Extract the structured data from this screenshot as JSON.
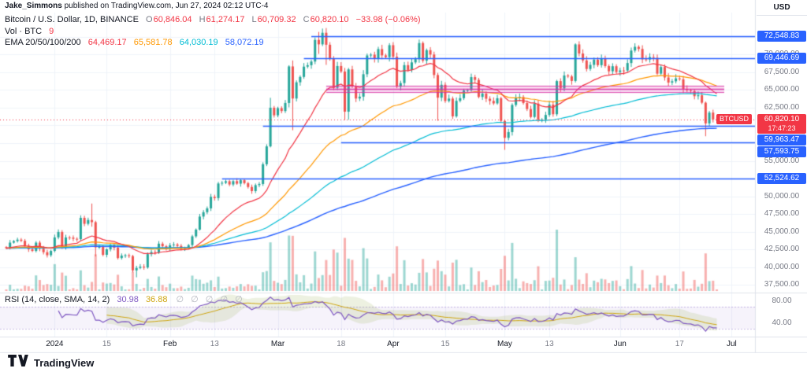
{
  "attribution": {
    "author": "Jake_Simmons",
    "rest": " published on TradingView.com, Jun 27, 2024 02:12 UTC-4"
  },
  "symbol_row": {
    "title": "Bitcoin / U.S. Dollar, 1D, BINANCE",
    "pairs": [
      {
        "k": "O",
        "v": "60,846.04"
      },
      {
        "k": "H",
        "v": "61,274.17"
      },
      {
        "k": "L",
        "v": "60,709.32"
      },
      {
        "k": "C",
        "v": "60,820.10"
      }
    ],
    "change": "−33.98 (−0.06%)"
  },
  "vol_row": {
    "label": "Vol · BTC",
    "value": "9"
  },
  "ema_row": {
    "label": "EMA 20/50/100/200",
    "values": [
      "64,469.17",
      "65,581.78",
      "64,030.19",
      "58,072.19"
    ]
  },
  "rsi_row": {
    "label": "RSI (14, close, SMA, 14, 2)",
    "rsi_value": "30.98",
    "ma_value": "36.88",
    "empties": "∅ ∅ ∅ ∅ ∅"
  },
  "price_scale": {
    "currency": "USD",
    "current": {
      "symbol_label": "BTCUSD",
      "price_label": "60,820.10",
      "price": 60820.1,
      "countdown": "17:47:23"
    }
  },
  "footer": {
    "brand": "TradingView"
  },
  "colors": {
    "up": "#26a69a",
    "down": "#ef5350",
    "up_vol": "rgba(38,166,154,0.45)",
    "down_vol": "rgba(239,83,80,0.45)",
    "accent_blue": "#2962ff",
    "current_red": "#f23645",
    "ema20": "#f23645",
    "ema50": "#ff9800",
    "ema100": "#00bcd4",
    "ema200": "#2962ff",
    "rsi": "#7e57c2",
    "rsi_ma": "#cfa50f",
    "rsi_bb_fill": "rgba(141,171,66,0.16)",
    "rsi_zone_fill": "rgba(126,87,194,0.07)",
    "rsi_zone_line": "rgba(126,87,194,0.4)",
    "zone_fill": "rgba(231,70,183,0.20)",
    "zone_border": "rgba(214,43,161,0.85)",
    "grid": "#f0f3fa",
    "separator": "#e0e3eb",
    "axis_text": "#787b86",
    "text": "#131722"
  },
  "chart_data": {
    "type": "candlestick",
    "symbol": "BTCUSD",
    "exchange": "BINANCE",
    "interval": "1D",
    "start_date": "2023-12-19",
    "indicators": [
      "Volume",
      "EMA 20",
      "EMA 50",
      "EMA 100",
      "EMA 200",
      "RSI (14, close, SMA, 14, 2)"
    ],
    "closes": [
      42660,
      43450,
      43670,
      43870,
      43710,
      43010,
      42520,
      42280,
      43450,
      42600,
      42100,
      41670,
      42280,
      44190,
      44960,
      42850,
      44180,
      44160,
      43990,
      43940,
      46950,
      46110,
      46650,
      46340,
      42780,
      42840,
      41730,
      42510,
      43140,
      42740,
      41270,
      41620,
      41670,
      41550,
      39530,
      39880,
      40060,
      39940,
      41820,
      42120,
      42030,
      43300,
      42940,
      42580,
      43080,
      43190,
      42990,
      42580,
      42710,
      43100,
      44340,
      45290,
      47130,
      47750,
      48290,
      49920,
      49740,
      51800,
      51900,
      52120,
      51660,
      52130,
      51780,
      52270,
      51850,
      51310,
      50730,
      51570,
      51730,
      54520,
      57040,
      62500,
      61430,
      62440,
      62030,
      63170,
      68330,
      63800,
      66090,
      66850,
      68300,
      68500,
      69020,
      72080,
      71450,
      73080,
      71390,
      69400,
      65310,
      68390,
      67610,
      61940,
      67910,
      65490,
      63800,
      64060,
      67230,
      69880,
      69990,
      69470,
      70780,
      69890,
      69640,
      71330,
      69700,
      65460,
      65980,
      68510,
      67840,
      68900,
      69360,
      71630,
      69140,
      70630,
      70010,
      67120,
      63920,
      65740,
      63450,
      63790,
      61280,
      63470,
      63850,
      64940,
      64980,
      66820,
      66430,
      64020,
      64500,
      63770,
      63460,
      63110,
      63840,
      60640,
      58250,
      59060,
      62890,
      63890,
      64010,
      63160,
      62310,
      61190,
      63090,
      60790,
      60820,
      61480,
      62940,
      61580,
      66260,
      65230,
      67050,
      66920,
      66280,
      71440,
      70150,
      69180,
      67970,
      68550,
      69280,
      68510,
      69420,
      68380,
      67640,
      68360,
      67540,
      67760,
      67750,
      68810,
      70570,
      71100,
      70800,
      69330,
      69310,
      69650,
      69540,
      67310,
      68250,
      66770,
      66050,
      66230,
      66640,
      66510,
      65140,
      64970,
      64860,
      64130,
      64260,
      63210,
      60280,
      61810,
      60850,
      60820
    ],
    "overrides": {
      "23": [
        46650,
        48970,
        45700,
        46340
      ],
      "24": [
        46340,
        46540,
        41500,
        42780
      ],
      "35": [
        39530,
        40180,
        38555,
        39880
      ],
      "71": [
        57040,
        63900,
        56900,
        62500
      ],
      "76": [
        63170,
        68500,
        62550,
        68330
      ],
      "77": [
        68330,
        69170,
        59320,
        63800
      ],
      "84": [
        72080,
        73200,
        70100,
        71450
      ],
      "85": [
        71450,
        73680,
        71200,
        73080
      ],
      "86": [
        73080,
        73750,
        68550,
        71390
      ],
      "91": [
        67610,
        68120,
        60770,
        61940
      ],
      "92": [
        61940,
        68120,
        60800,
        67910
      ],
      "116": [
        67120,
        67420,
        60660,
        63920
      ],
      "134": [
        60640,
        60850,
        56550,
        58250
      ],
      "148": [
        61580,
        66440,
        61320,
        66260
      ],
      "153": [
        66280,
        71590,
        66060,
        71440
      ],
      "188": [
        63210,
        63370,
        58470,
        60280
      ],
      "191": [
        60846,
        61274,
        60709,
        60820
      ]
    },
    "current_price": 60820.1,
    "levels": [
      {
        "label": "72,548.83",
        "price": 72548.83,
        "from_i": 82
      },
      {
        "label": "69,446.69",
        "price": 69446.69,
        "from_i": 80
      },
      {
        "label": "59,963.47",
        "price": 59963.47,
        "from_i": 69
      },
      {
        "label": "57,593.75",
        "price": 57593.75,
        "from_i": 90
      },
      {
        "label": "52,524.62",
        "price": 52524.62,
        "from_i": 58
      }
    ],
    "zone": {
      "top": 65550,
      "bottom": 64650,
      "mid": 65100,
      "from_i": 86,
      "to_i": 193
    },
    "y_axis": {
      "min": 36400,
      "max": 74600,
      "grid_min": 37500,
      "grid_max": 72500,
      "grid_step": 2500,
      "ticks": [
        {
          "label": "70,000.00",
          "value": 70000
        },
        {
          "label": "67,500.00",
          "value": 67500
        },
        {
          "label": "65,000.00",
          "value": 65000
        },
        {
          "label": "62,500.00",
          "value": 62500
        },
        {
          "label": "55,000.00",
          "value": 55000
        },
        {
          "label": "50,000.00",
          "value": 50000
        },
        {
          "label": "47,500.00",
          "value": 47500
        },
        {
          "label": "45,000.00",
          "value": 45000
        },
        {
          "label": "42,500.00",
          "value": 42500
        },
        {
          "label": "40,000.00",
          "value": 40000
        },
        {
          "label": "37,500.00",
          "value": 37500
        }
      ]
    },
    "rsi_axis": {
      "ticks": [
        {
          "label": "80.00",
          "value": 80
        },
        {
          "label": "40.00",
          "value": 40
        }
      ],
      "dashed_levels": [
        70,
        30
      ]
    },
    "x_ticks": [
      {
        "label": "2024",
        "i": 13,
        "major": true
      },
      {
        "label": "15",
        "i": 27,
        "major": false
      },
      {
        "label": "Feb",
        "i": 44,
        "major": true
      },
      {
        "label": "13",
        "i": 56,
        "major": false
      },
      {
        "label": "Mar",
        "i": 73,
        "major": true
      },
      {
        "label": "18",
        "i": 90,
        "major": false
      },
      {
        "label": "Apr",
        "i": 104,
        "major": true
      },
      {
        "label": "15",
        "i": 118,
        "major": false
      },
      {
        "label": "May",
        "i": 134,
        "major": true
      },
      {
        "label": "13",
        "i": 146,
        "major": false
      },
      {
        "label": "Jun",
        "i": 165,
        "major": true
      },
      {
        "label": "17",
        "i": 181,
        "major": false
      },
      {
        "label": "Jul",
        "i": 195,
        "major": true
      }
    ]
  }
}
